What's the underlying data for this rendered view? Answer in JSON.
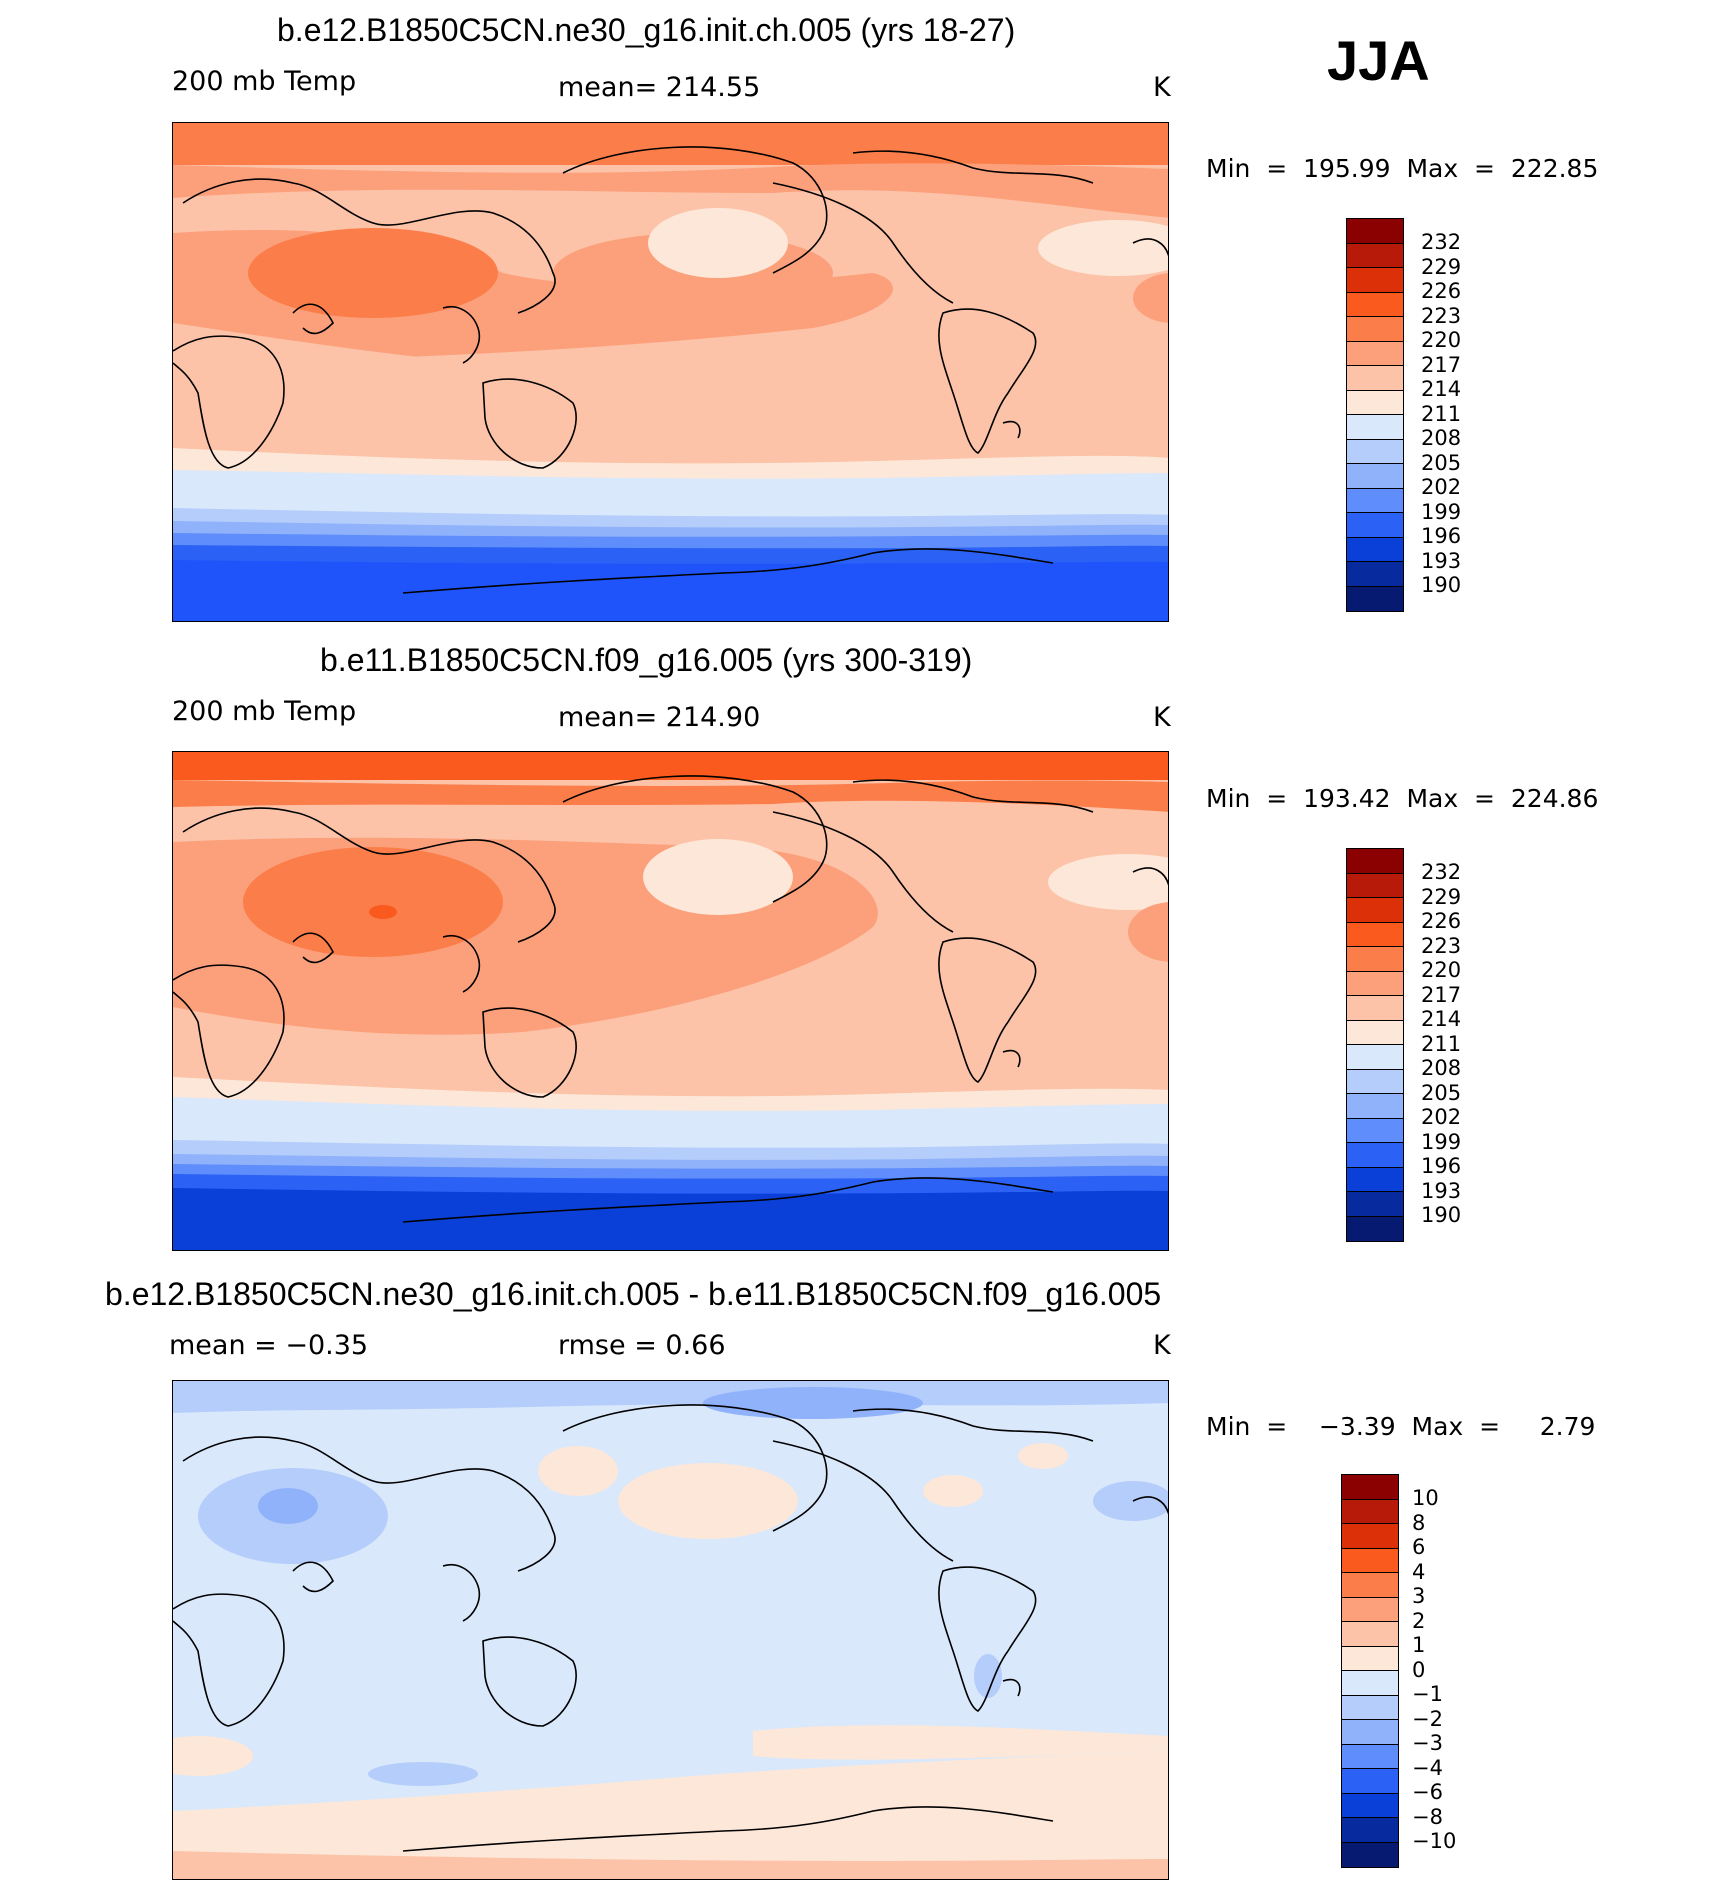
{
  "season": "JJA",
  "panels": [
    {
      "title": "b.e12.B1850C5CN.ne30_g16.init.ch.005 (yrs 18-27)",
      "left_label": "200 mb Temp",
      "center_label": "mean= 214.55",
      "right_label": "K",
      "min_max": "Min  =  195.99  Max  =  222.85",
      "legend_labels": [
        "232",
        "229",
        "226",
        "223",
        "220",
        "217",
        "214",
        "211",
        "208",
        "205",
        "202",
        "199",
        "196",
        "193",
        "190"
      ],
      "legend_colors": [
        "#8b0000",
        "#b81a0a",
        "#dc3108",
        "#fa5a1e",
        "#fb7e4a",
        "#fca07c",
        "#fcc3a8",
        "#fde7d8",
        "#d9e8fb",
        "#b5cdfb",
        "#8fb2fb",
        "#5f8dfb",
        "#2b62f5",
        "#0a3fd8",
        "#072a9e",
        "#061a72"
      ],
      "chart_data": {
        "type": "heatmap",
        "variable": "200 mb Temp",
        "units": "K",
        "mean": 214.55,
        "min": 195.99,
        "max": 222.85,
        "contour_levels": [
          190,
          193,
          196,
          199,
          202,
          205,
          208,
          211,
          214,
          217,
          220,
          223,
          226,
          229,
          232
        ]
      }
    },
    {
      "title": "b.e11.B1850C5CN.f09_g16.005 (yrs 300-319)",
      "left_label": "200 mb Temp",
      "center_label": "mean= 214.90",
      "right_label": "K",
      "min_max": "Min  =  193.42  Max  =  224.86",
      "legend_labels": [
        "232",
        "229",
        "226",
        "223",
        "220",
        "217",
        "214",
        "211",
        "208",
        "205",
        "202",
        "199",
        "196",
        "193",
        "190"
      ],
      "legend_colors": [
        "#8b0000",
        "#b81a0a",
        "#dc3108",
        "#fa5a1e",
        "#fb7e4a",
        "#fca07c",
        "#fcc3a8",
        "#fde7d8",
        "#d9e8fb",
        "#b5cdfb",
        "#8fb2fb",
        "#5f8dfb",
        "#2b62f5",
        "#0a3fd8",
        "#072a9e",
        "#061a72"
      ],
      "chart_data": {
        "type": "heatmap",
        "variable": "200 mb Temp",
        "units": "K",
        "mean": 214.9,
        "min": 193.42,
        "max": 224.86,
        "contour_levels": [
          190,
          193,
          196,
          199,
          202,
          205,
          208,
          211,
          214,
          217,
          220,
          223,
          226,
          229,
          232
        ]
      }
    },
    {
      "title": "b.e12.B1850C5CN.ne30_g16.init.ch.005 - b.e11.B1850C5CN.f09_g16.005",
      "left_label": "mean  =    −0.35",
      "center_label": "rmse  =     0.66",
      "right_label": "K",
      "min_max": "Min  =    −3.39  Max  =     2.79",
      "legend_labels": [
        "10",
        "8",
        "6",
        "4",
        "3",
        "2",
        "1",
        "0",
        "−1",
        "−2",
        "−3",
        "−4",
        "−6",
        "−8",
        "−10"
      ],
      "legend_colors": [
        "#8b0000",
        "#b81a0a",
        "#dc3108",
        "#fa5a1e",
        "#fb7e4a",
        "#fca07c",
        "#fcc3a8",
        "#fde7d8",
        "#d9e8fb",
        "#b5cdfb",
        "#8fb2fb",
        "#5f8dfb",
        "#2b62f5",
        "#0a3fd8",
        "#072a9e",
        "#061a72"
      ],
      "chart_data": {
        "type": "heatmap",
        "variable": "200 mb Temp difference",
        "units": "K",
        "mean": -0.35,
        "rmse": 0.66,
        "min": -3.39,
        "max": 2.79,
        "contour_levels": [
          -10,
          -8,
          -6,
          -4,
          -3,
          -2,
          -1,
          0,
          1,
          2,
          3,
          4,
          6,
          8,
          10
        ]
      }
    }
  ]
}
